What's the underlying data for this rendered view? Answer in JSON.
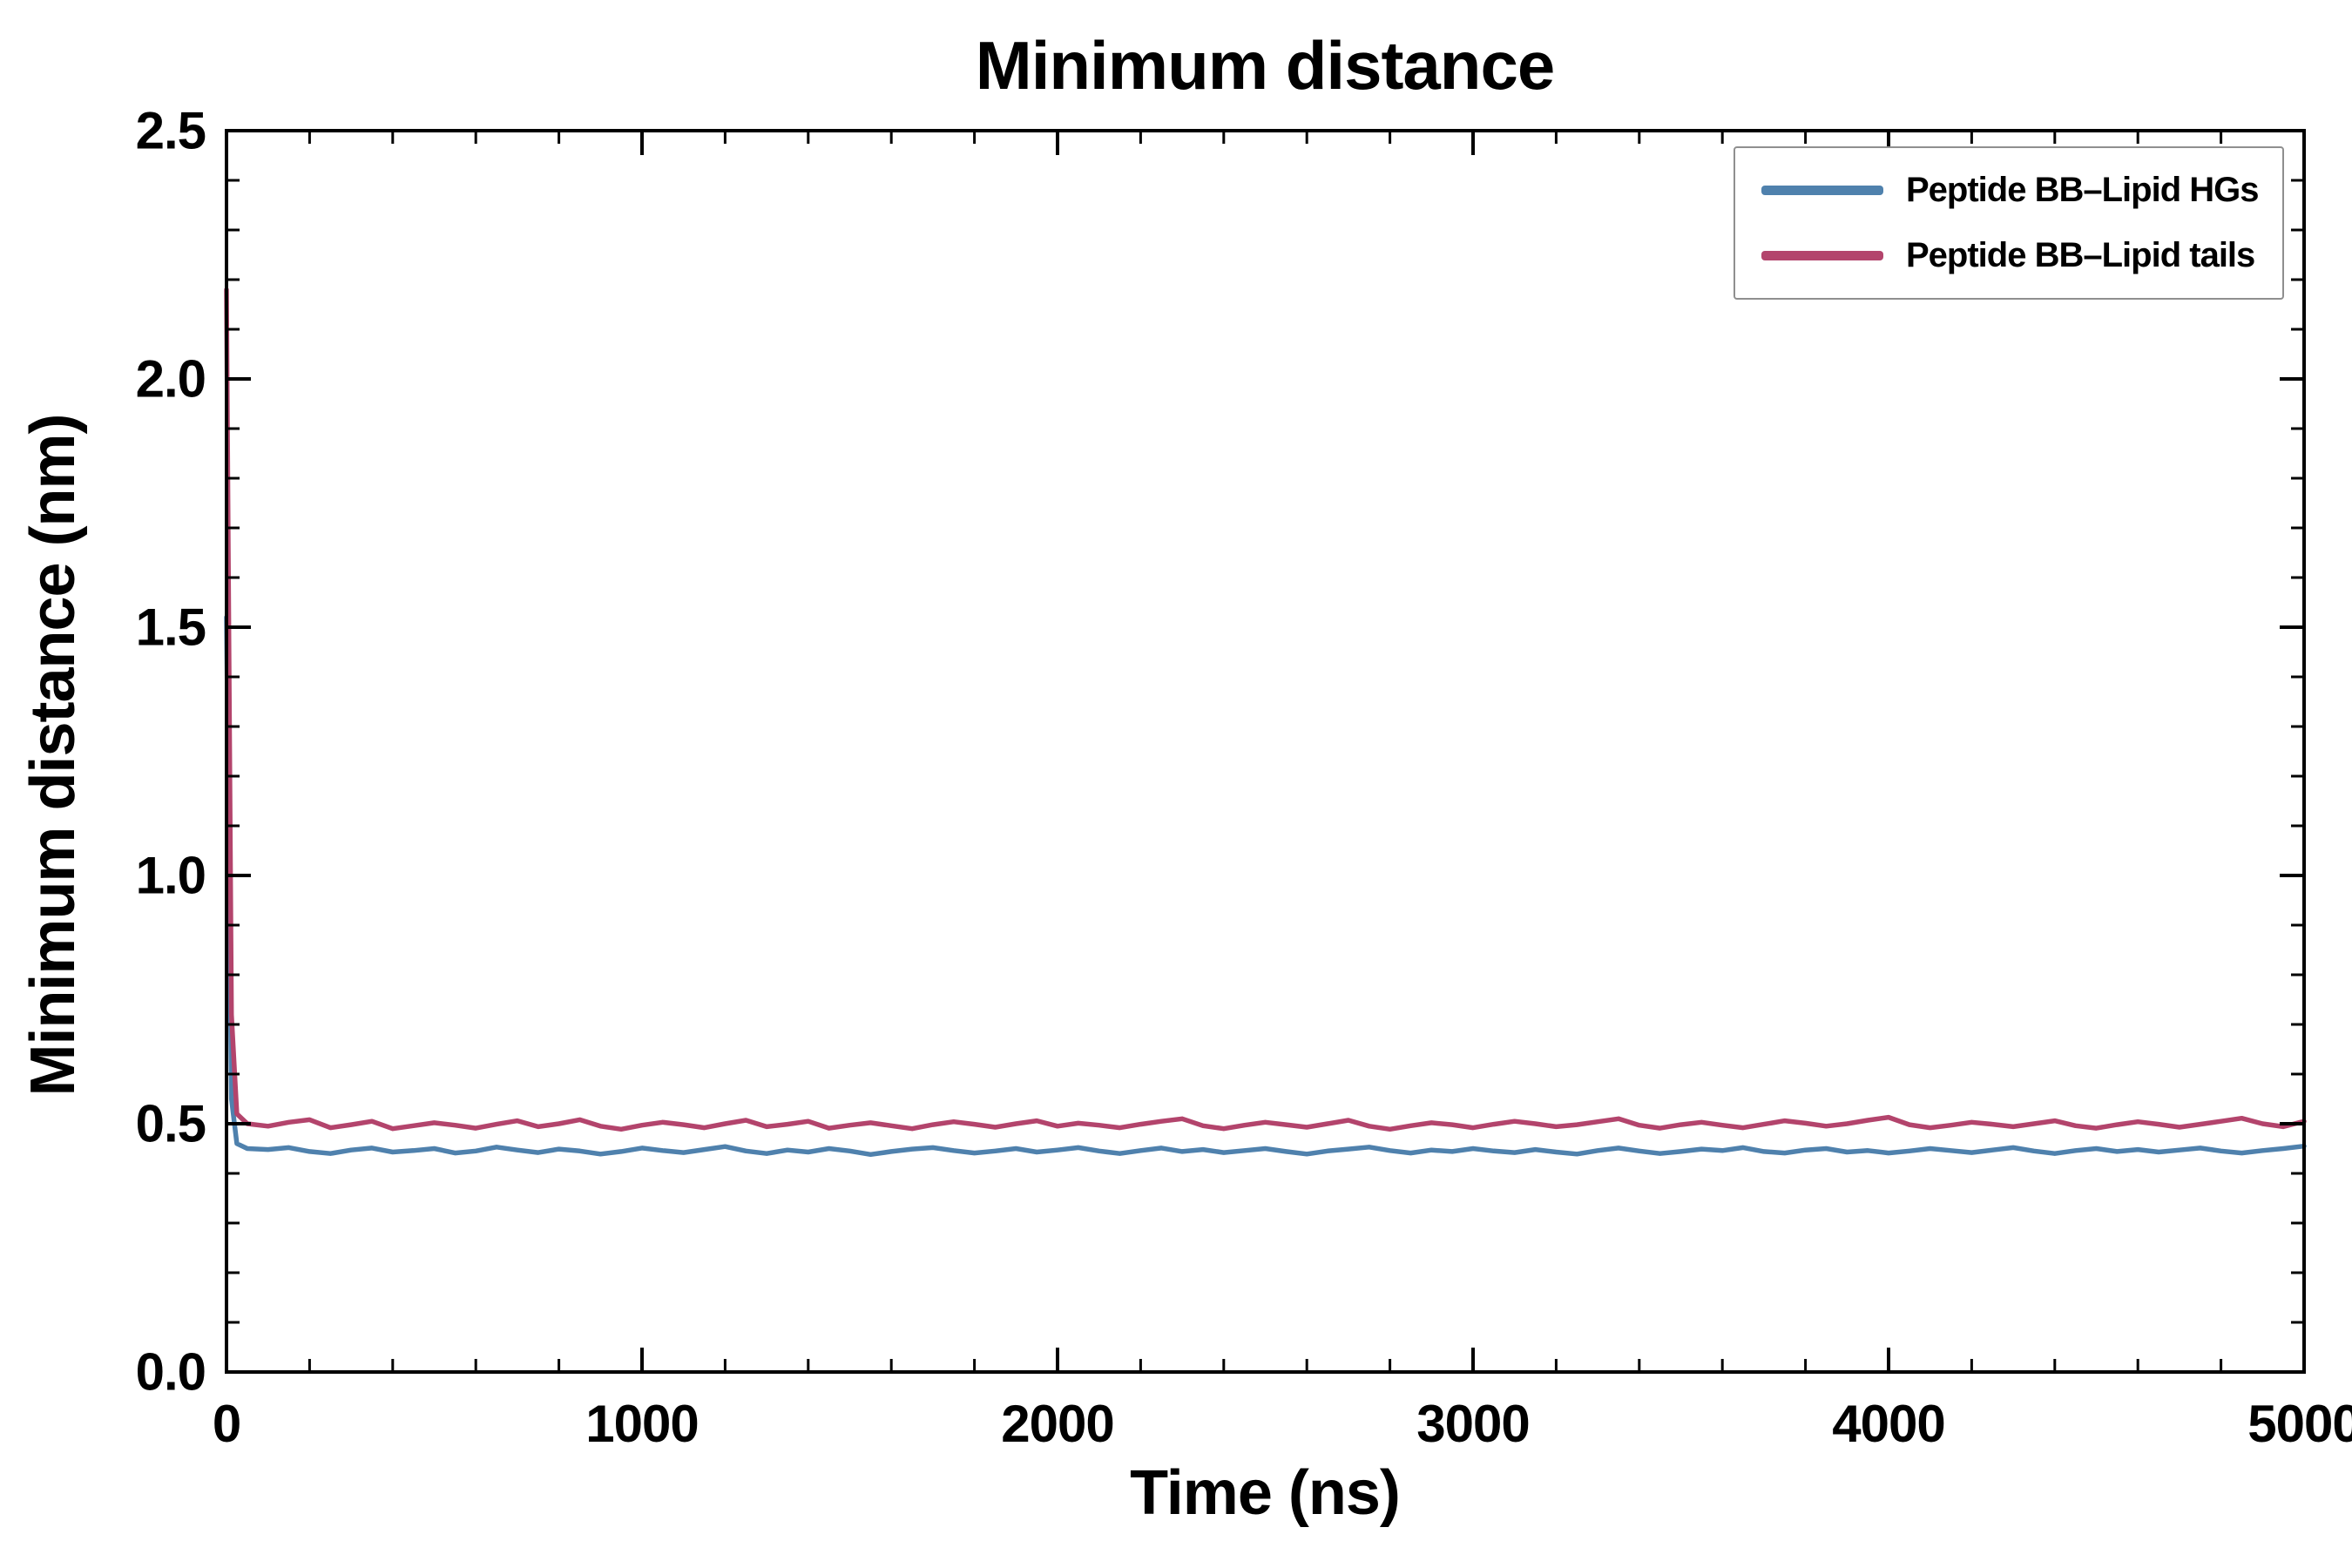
{
  "title": "Minimum distance",
  "axes": {
    "xlabel": "Time (ns)",
    "ylabel": "Minimum distance (nm)"
  },
  "chart_data": {
    "type": "line",
    "title": "Minimum distance",
    "xlabel": "Time (ns)",
    "ylabel": "Minimum distance (nm)",
    "xlim": [
      0,
      5000
    ],
    "ylim": [
      0,
      2.5
    ],
    "grid": false,
    "legend_position": "upper right",
    "x_major_ticks": [
      0,
      1000,
      2000,
      3000,
      4000,
      5000
    ],
    "x_tick_labels": [
      "0",
      "1000",
      "2000",
      "3000",
      "4000",
      "5000"
    ],
    "y_major_ticks": [
      0,
      0.5,
      1.0,
      1.5,
      2.0,
      2.5
    ],
    "y_tick_labels": [
      "0.0",
      "0.5",
      "1.0",
      "1.5",
      "2.0",
      "2.5"
    ],
    "x_minor_step": 200,
    "y_minor_step": 0.1,
    "x": [
      0,
      12,
      25,
      50,
      100,
      150,
      200,
      250,
      300,
      350,
      400,
      450,
      500,
      550,
      600,
      650,
      700,
      750,
      800,
      850,
      900,
      950,
      1000,
      1050,
      1100,
      1150,
      1200,
      1250,
      1300,
      1350,
      1400,
      1450,
      1500,
      1550,
      1600,
      1650,
      1700,
      1750,
      1800,
      1850,
      1900,
      1950,
      2000,
      2050,
      2100,
      2150,
      2200,
      2250,
      2300,
      2350,
      2400,
      2450,
      2500,
      2550,
      2600,
      2650,
      2700,
      2750,
      2800,
      2850,
      2900,
      2950,
      3000,
      3050,
      3100,
      3150,
      3200,
      3250,
      3300,
      3350,
      3400,
      3450,
      3500,
      3550,
      3600,
      3650,
      3700,
      3750,
      3800,
      3850,
      3900,
      3950,
      4000,
      4050,
      4100,
      4150,
      4200,
      4250,
      4300,
      4350,
      4400,
      4450,
      4500,
      4550,
      4600,
      4650,
      4700,
      4750,
      4800,
      4850,
      4900,
      4950,
      5000
    ],
    "series": [
      {
        "name": "Peptide BB–Lipid HGs",
        "color": "#4f81ad",
        "y": [
          1.52,
          0.55,
          0.46,
          0.45,
          0.448,
          0.452,
          0.444,
          0.44,
          0.447,
          0.451,
          0.443,
          0.446,
          0.45,
          0.441,
          0.445,
          0.453,
          0.447,
          0.442,
          0.449,
          0.445,
          0.439,
          0.444,
          0.451,
          0.446,
          0.442,
          0.448,
          0.454,
          0.445,
          0.44,
          0.447,
          0.443,
          0.45,
          0.445,
          0.438,
          0.444,
          0.449,
          0.452,
          0.446,
          0.441,
          0.445,
          0.45,
          0.443,
          0.447,
          0.452,
          0.445,
          0.44,
          0.446,
          0.451,
          0.444,
          0.448,
          0.442,
          0.446,
          0.45,
          0.444,
          0.439,
          0.445,
          0.449,
          0.453,
          0.446,
          0.441,
          0.447,
          0.444,
          0.45,
          0.445,
          0.442,
          0.448,
          0.443,
          0.439,
          0.446,
          0.451,
          0.445,
          0.44,
          0.444,
          0.449,
          0.446,
          0.452,
          0.444,
          0.441,
          0.447,
          0.45,
          0.443,
          0.446,
          0.441,
          0.445,
          0.45,
          0.446,
          0.442,
          0.447,
          0.452,
          0.445,
          0.44,
          0.446,
          0.45,
          0.444,
          0.448,
          0.443,
          0.447,
          0.451,
          0.445,
          0.441,
          0.446,
          0.45,
          0.455
        ]
      },
      {
        "name": "Peptide BB–Lipid tails",
        "color": "#b3446c",
        "y": [
          2.18,
          0.72,
          0.52,
          0.5,
          0.495,
          0.503,
          0.508,
          0.492,
          0.498,
          0.505,
          0.49,
          0.496,
          0.502,
          0.497,
          0.491,
          0.499,
          0.506,
          0.494,
          0.5,
          0.508,
          0.495,
          0.489,
          0.497,
          0.503,
          0.498,
          0.492,
          0.5,
          0.507,
          0.494,
          0.499,
          0.505,
          0.491,
          0.497,
          0.502,
          0.496,
          0.49,
          0.498,
          0.504,
          0.499,
          0.493,
          0.5,
          0.506,
          0.495,
          0.501,
          0.497,
          0.492,
          0.499,
          0.505,
          0.51,
          0.496,
          0.49,
          0.497,
          0.503,
          0.498,
          0.493,
          0.5,
          0.507,
          0.495,
          0.489,
          0.496,
          0.502,
          0.498,
          0.492,
          0.499,
          0.505,
          0.5,
          0.494,
          0.498,
          0.504,
          0.51,
          0.497,
          0.491,
          0.498,
          0.503,
          0.497,
          0.492,
          0.499,
          0.506,
          0.501,
          0.495,
          0.5,
          0.507,
          0.513,
          0.498,
          0.492,
          0.497,
          0.503,
          0.499,
          0.494,
          0.5,
          0.506,
          0.496,
          0.491,
          0.498,
          0.504,
          0.499,
          0.493,
          0.499,
          0.505,
          0.511,
          0.5,
          0.494,
          0.505
        ]
      }
    ]
  }
}
